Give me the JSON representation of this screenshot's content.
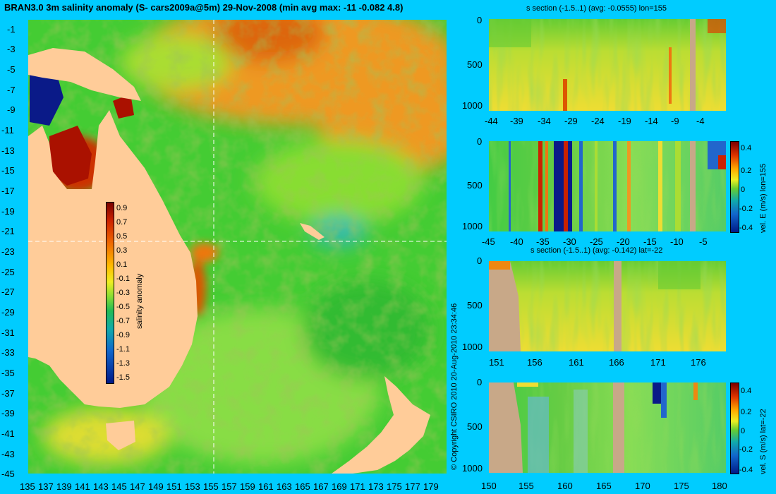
{
  "main_title": "BRAN3.0 3m salinity anomaly (S- cars2009a@5m) 29-Nov-2008 (min avg max: -11 -0.082 4.8)",
  "copyright": "© Copyright CSIRO 2010   20-Aug-2010 23:34:46",
  "colors": {
    "background": "#00ccff",
    "land": "#ffcc99",
    "section_land": "#c8a888",
    "crosshair": "#ffffff"
  },
  "map": {
    "lat_ticks": [
      "-1",
      "-3",
      "-5",
      "-7",
      "-9",
      "-11",
      "-13",
      "-15",
      "-17",
      "-19",
      "-21",
      "-23",
      "-25",
      "-27",
      "-29",
      "-31",
      "-33",
      "-35",
      "-37",
      "-39",
      "-41",
      "-43",
      "-45"
    ],
    "lon_ticks": [
      "135",
      "137",
      "139",
      "141",
      "143",
      "145",
      "147",
      "149",
      "151",
      "153",
      "155",
      "157",
      "159",
      "161",
      "163",
      "165",
      "167",
      "169",
      "171",
      "173",
      "175",
      "177",
      "179"
    ],
    "crosshair_lon": 155,
    "crosshair_lat": -22,
    "colorbar": {
      "label": "salinity anomaly",
      "ticks": [
        "0.9",
        "0.7",
        "0.5",
        "0.3",
        "0.1",
        "-0.1",
        "-0.3",
        "-0.5",
        "-0.7",
        "-0.9",
        "-1.1",
        "-1.3",
        "-1.5"
      ]
    }
  },
  "panels": [
    {
      "id": "s-lon",
      "title": "s section (-1.5..1) (avg: -0.0555) lon=155",
      "x_ticks": [
        "-44",
        "-39",
        "-34",
        "-29",
        "-24",
        "-19",
        "-14",
        "-9",
        "-4"
      ],
      "y_ticks": [
        "0",
        "500",
        "1000"
      ]
    },
    {
      "id": "vel-e-lon",
      "title": "",
      "x_ticks": [
        "-45",
        "-40",
        "-35",
        "-30",
        "-25",
        "-20",
        "-15",
        "-10",
        "-5"
      ],
      "y_ticks": [
        "0",
        "500",
        "1000"
      ],
      "colorbar_label": "vel. E (m/s) lon=155",
      "colorbar_ticks": [
        "0.4",
        "0.2",
        "0",
        "-0.2",
        "-0.4"
      ]
    },
    {
      "id": "s-lat",
      "title": "s section (-1.5..1) (avg: -0.142) lat=-22",
      "x_ticks": [
        "151",
        "156",
        "161",
        "166",
        "171",
        "176"
      ],
      "y_ticks": [
        "0",
        "500",
        "1000"
      ]
    },
    {
      "id": "vel-s-lat",
      "title": "",
      "x_ticks": [
        "150",
        "155",
        "160",
        "165",
        "170",
        "175",
        "180"
      ],
      "y_ticks": [
        "0",
        "500",
        "1000"
      ],
      "colorbar_label": "vel. S (m/s) lat=-22",
      "colorbar_ticks": [
        "0.4",
        "0.2",
        "0",
        "-0.2",
        "-0.4"
      ]
    }
  ]
}
